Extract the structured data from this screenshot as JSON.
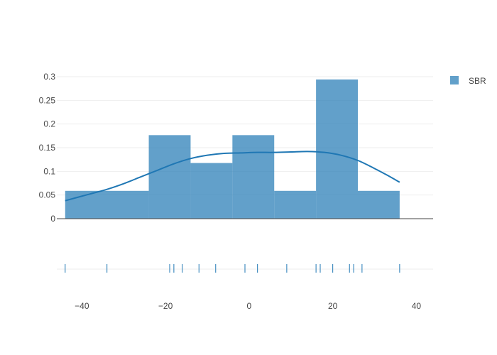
{
  "chart_data": {
    "type": "histogram",
    "title": "",
    "xlabel": "",
    "ylabel": "",
    "xlim": [
      -46,
      44
    ],
    "ylim": [
      0,
      0.3
    ],
    "x_ticks": [
      -40,
      -20,
      0,
      20,
      40
    ],
    "x_tick_labels": [
      "−40",
      "−20",
      "0",
      "20",
      "40"
    ],
    "y_ticks": [
      0,
      0.05,
      0.1,
      0.15,
      0.2,
      0.25,
      0.3
    ],
    "y_tick_labels": [
      "0",
      "0.05",
      "0.1",
      "0.15",
      "0.2",
      "0.25",
      "0.3"
    ],
    "grid": true,
    "legend_position": "top-right",
    "series": [
      {
        "name": "SBR",
        "type": "histogram",
        "color": "#1f77b4",
        "bins": [
          {
            "start": -44,
            "end": -24,
            "value": 0.0588
          },
          {
            "start": -24,
            "end": -14,
            "value": 0.1765
          },
          {
            "start": -14,
            "end": -4,
            "value": 0.1176
          },
          {
            "start": -4,
            "end": 6,
            "value": 0.1765
          },
          {
            "start": 6,
            "end": 16,
            "value": 0.0588
          },
          {
            "start": 16,
            "end": 26,
            "value": 0.2941
          },
          {
            "start": 26,
            "end": 36,
            "value": 0.0588
          }
        ]
      }
    ],
    "density_curve": {
      "color": "#1f77b4",
      "x": [
        -44,
        -39,
        -34,
        -30,
        -26,
        -22,
        -18,
        -14,
        -10,
        -6,
        -2,
        2,
        6,
        10,
        14,
        18,
        22,
        26,
        30,
        33,
        36
      ],
      "y": [
        0.038,
        0.05,
        0.062,
        0.074,
        0.088,
        0.102,
        0.116,
        0.127,
        0.134,
        0.138,
        0.139,
        0.14,
        0.14,
        0.141,
        0.142,
        0.14,
        0.134,
        0.123,
        0.106,
        0.092,
        0.077
      ]
    },
    "rug": {
      "color": "#1f77b4",
      "x": [
        -44,
        -34,
        -19,
        -18,
        -16,
        -12,
        -8,
        -1,
        2,
        9,
        16,
        17,
        20,
        24,
        25,
        27,
        36
      ]
    }
  }
}
